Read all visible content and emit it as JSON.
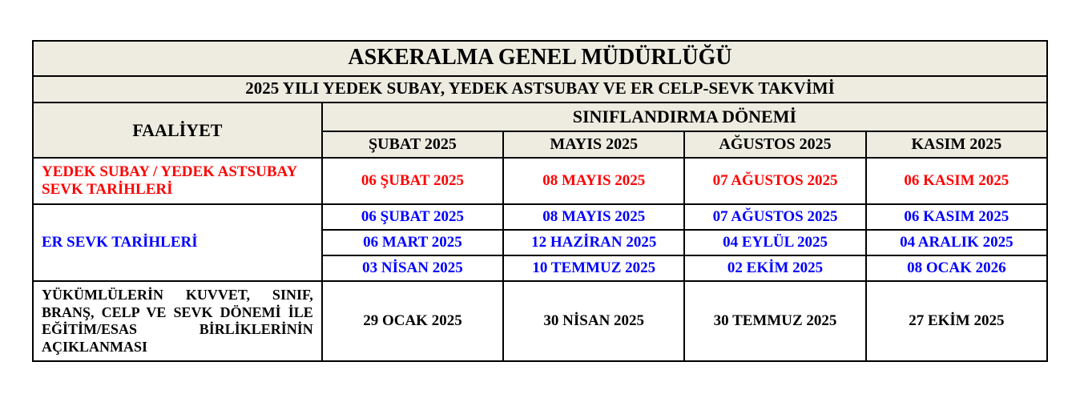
{
  "colors": {
    "header_bg": "#eeece1",
    "border": "#000000",
    "red": "#ff0000",
    "blue": "#0000ff",
    "black": "#000000",
    "page_bg": "#ffffff"
  },
  "title": "ASKERALMA GENEL MÜDÜRLÜĞÜ",
  "subtitle": "2025 YILI YEDEK SUBAY, YEDEK ASTSUBAY VE ER CELP-SEVK TAKVİMİ",
  "activity_header": "FAALİYET",
  "period_header": "SINIFLANDIRMA DÖNEMİ",
  "months": [
    "ŞUBAT 2025",
    "MAYIS 2025",
    "AĞUSTOS 2025",
    "KASIM 2025"
  ],
  "rows": {
    "yedek": {
      "label": "YEDEK SUBAY / YEDEK ASTSUBAY SEVK TARİHLERİ",
      "dates": [
        "06 ŞUBAT 2025",
        "08 MAYIS 2025",
        "07 AĞUSTOS 2025",
        "06 KASIM 2025"
      ]
    },
    "er": {
      "label": "ER SEVK TARİHLERİ",
      "dates": [
        [
          "06 ŞUBAT 2025",
          "08 MAYIS 2025",
          "07 AĞUSTOS 2025",
          "06 KASIM 2025"
        ],
        [
          "06 MART 2025",
          "12 HAZİRAN 2025",
          "04 EYLÜL 2025",
          "04 ARALIK 2025"
        ],
        [
          "03 NİSAN 2025",
          "10 TEMMUZ 2025",
          "02 EKİM 2025",
          "08 OCAK 2026"
        ]
      ]
    },
    "aciklama": {
      "label": "YÜKÜMLÜLERİN KUVVET, SINIF, BRANŞ, CELP VE SEVK DÖNEMİ İLE EĞİTİM/ESAS BİRLİKLERİNİN AÇIKLANMASI",
      "dates": [
        "29 OCAK 2025",
        "30 NİSAN 2025",
        "30 TEMMUZ 2025",
        "27 EKİM 2025"
      ]
    }
  }
}
